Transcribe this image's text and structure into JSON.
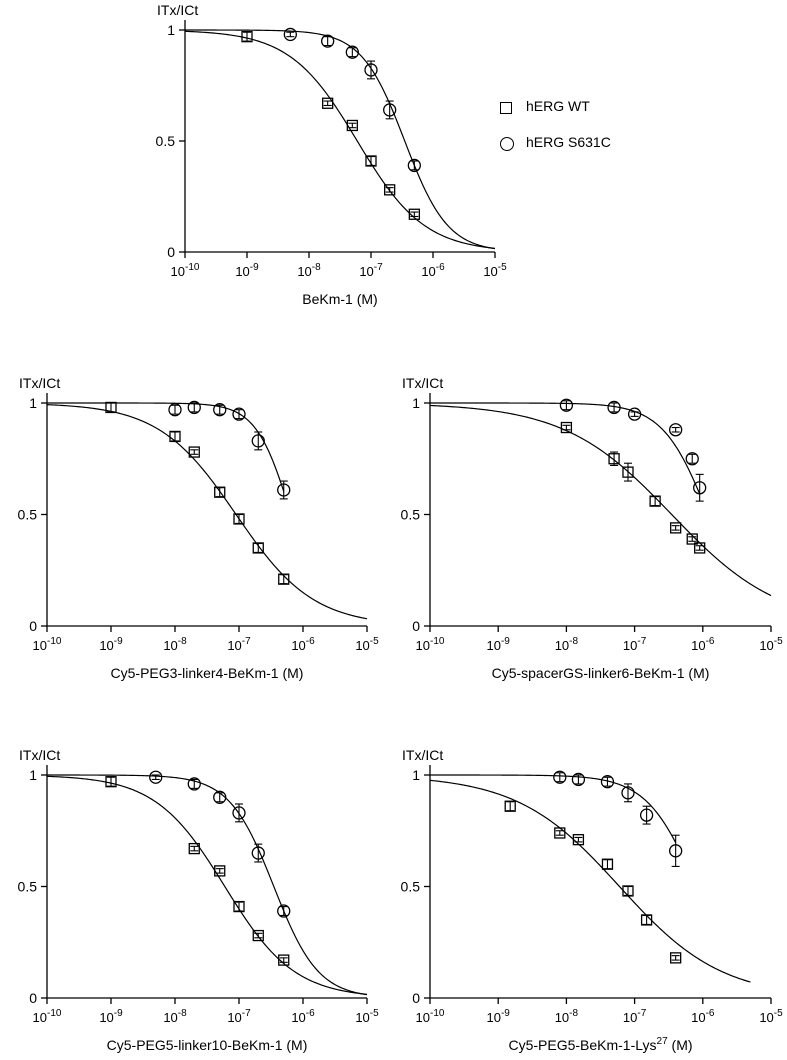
{
  "legend": {
    "items": [
      {
        "label": "hERG WT",
        "marker": "square"
      },
      {
        "label": "hERG S631C",
        "marker": "circle"
      }
    ]
  },
  "chart_data": [
    {
      "type": "scatter",
      "title": "",
      "xlabel": "BeKm-1 (M)",
      "ylabel": "ITx/ICt",
      "xscale": "log",
      "xlim": [
        1e-10,
        1e-05
      ],
      "ylim": [
        0,
        1.05
      ],
      "yticks": [
        "0",
        "0.5",
        "1"
      ],
      "series": [
        {
          "name": "hERG WT",
          "marker": "square",
          "x": [
            1e-09,
            2e-08,
            5e-08,
            1e-07,
            2e-07,
            5e-07
          ],
          "y": [
            0.97,
            0.67,
            0.57,
            0.41,
            0.28,
            0.17
          ],
          "err": [
            0.02,
            0.01,
            0.01,
            0.02,
            0.01,
            0.01
          ],
          "fit": {
            "ic50": 6e-08,
            "hill": 0.8,
            "top": 1.0
          }
        },
        {
          "name": "hERG S631C",
          "marker": "circle",
          "x": [
            5e-09,
            2e-08,
            5e-08,
            1e-07,
            2e-07,
            5e-07
          ],
          "y": [
            0.98,
            0.95,
            0.9,
            0.82,
            0.64,
            0.39
          ],
          "err": [
            0.01,
            0.02,
            0.02,
            0.04,
            0.04,
            0.02
          ],
          "fit": {
            "ic50": 3.5e-07,
            "hill": 1.25,
            "top": 1.0
          }
        }
      ]
    },
    {
      "type": "scatter",
      "title": "",
      "xlabel": "Cy5-PEG3-linker4-BeKm-1 (M)",
      "ylabel": "ITx/ICt",
      "xscale": "log",
      "xlim": [
        1e-10,
        1e-05
      ],
      "ylim": [
        0,
        1.05
      ],
      "yticks": [
        "0",
        "0.5",
        "1"
      ],
      "series": [
        {
          "marker": "square",
          "x": [
            1e-09,
            1e-08,
            2e-08,
            5e-08,
            1e-07,
            2e-07,
            5e-07
          ],
          "y": [
            0.98,
            0.85,
            0.78,
            0.6,
            0.48,
            0.35,
            0.21
          ],
          "err": [
            0.02,
            0.02,
            0.01,
            0.02,
            0.02,
            0.02,
            0.02
          ],
          "fit": {
            "ic50": 9e-08,
            "hill": 0.72,
            "top": 1.0
          }
        },
        {
          "marker": "circle",
          "x": [
            1e-08,
            2e-08,
            5e-08,
            1e-07,
            2e-07,
            5e-07
          ],
          "y": [
            0.97,
            0.98,
            0.97,
            0.95,
            0.83,
            0.61
          ],
          "err": [
            0.02,
            0.02,
            0.02,
            0.02,
            0.04,
            0.04
          ],
          "fit": {
            "ic50": 6.5e-07,
            "hill": 1.6,
            "top": 1.0,
            "xmax": 5e-07
          }
        }
      ]
    },
    {
      "type": "scatter",
      "title": "",
      "xlabel": "Cy5-spacerGS-linker6-BeKm-1 (M)",
      "ylabel": "ITx/ICt",
      "xscale": "log",
      "xlim": [
        1e-10,
        1e-05
      ],
      "ylim": [
        0,
        1.05
      ],
      "yticks": [
        "0",
        "0.5",
        "1"
      ],
      "series": [
        {
          "marker": "square",
          "x": [
            1e-08,
            5e-08,
            8e-08,
            2e-07,
            4e-07,
            7e-07,
            9e-07
          ],
          "y": [
            0.89,
            0.75,
            0.69,
            0.56,
            0.44,
            0.39,
            0.35
          ],
          "err": [
            0.01,
            0.03,
            0.04,
            0.02,
            0.01,
            0.01,
            0.01
          ],
          "fit": {
            "ic50": 3.5e-07,
            "hill": 0.55,
            "top": 1.0
          }
        },
        {
          "marker": "circle",
          "x": [
            1e-08,
            5e-08,
            1e-07,
            4e-07,
            7e-07,
            9e-07
          ],
          "y": [
            0.99,
            0.98,
            0.95,
            0.88,
            0.75,
            0.62
          ],
          "err": [
            0.02,
            0.02,
            0.01,
            0.01,
            0.02,
            0.06
          ],
          "fit": {
            "ic50": 1.2e-06,
            "hill": 1.3,
            "top": 1.0,
            "xmax": 9e-07
          }
        }
      ]
    },
    {
      "type": "scatter",
      "title": "",
      "xlabel": "Cy5-PEG5-linker10-BeKm-1 (M)",
      "ylabel": "ITx/ICt",
      "xscale": "log",
      "xlim": [
        1e-10,
        1e-05
      ],
      "ylim": [
        0,
        1.05
      ],
      "yticks": [
        "0",
        "0.5",
        "1"
      ],
      "series": [
        {
          "marker": "square",
          "x": [
            1e-09,
            2e-08,
            5e-08,
            1e-07,
            2e-07,
            5e-07
          ],
          "y": [
            0.97,
            0.67,
            0.57,
            0.41,
            0.28,
            0.17
          ],
          "err": [
            0.02,
            0.01,
            0.01,
            0.02,
            0.01,
            0.01
          ],
          "fit": {
            "ic50": 6e-08,
            "hill": 0.8,
            "top": 1.0
          }
        },
        {
          "marker": "circle",
          "x": [
            5e-09,
            2e-08,
            5e-08,
            1e-07,
            2e-07,
            5e-07
          ],
          "y": [
            0.99,
            0.96,
            0.9,
            0.83,
            0.65,
            0.39
          ],
          "err": [
            0.01,
            0.02,
            0.02,
            0.04,
            0.04,
            0.02
          ],
          "fit": {
            "ic50": 3.5e-07,
            "hill": 1.25,
            "top": 1.0
          }
        }
      ]
    },
    {
      "type": "scatter",
      "title": "",
      "xlabel": "Cy5-PEG5-BeKm-1-Lys",
      "xlabel_sup": "27",
      "xlabel_suffix": " (M)",
      "ylabel": "ITx/ICt",
      "xscale": "log",
      "xlim": [
        1e-10,
        1e-05
      ],
      "ylim": [
        0,
        1.05
      ],
      "yticks": [
        "0",
        "0.5",
        "1"
      ],
      "series": [
        {
          "marker": "square",
          "x": [
            1.5e-09,
            8e-09,
            1.5e-08,
            4e-08,
            8e-08,
            1.5e-07,
            4e-07
          ],
          "y": [
            0.86,
            0.74,
            0.71,
            0.6,
            0.48,
            0.35,
            0.18
          ],
          "err": [
            0.02,
            0.01,
            0.01,
            0.02,
            0.02,
            0.02,
            0.01
          ],
          "fit": {
            "ic50": 6e-08,
            "hill": 0.58,
            "top": 1.0,
            "xmax": 5e-06
          }
        },
        {
          "marker": "circle",
          "x": [
            8e-09,
            1.5e-08,
            4e-08,
            8e-08,
            1.5e-07,
            4e-07
          ],
          "y": [
            0.99,
            0.98,
            0.97,
            0.92,
            0.82,
            0.66
          ],
          "err": [
            0.02,
            0.02,
            0.02,
            0.04,
            0.04,
            0.07
          ],
          "fit": {
            "ic50": 8e-07,
            "hill": 1.2,
            "top": 1.0,
            "xmax": 4e-07
          }
        }
      ]
    }
  ]
}
